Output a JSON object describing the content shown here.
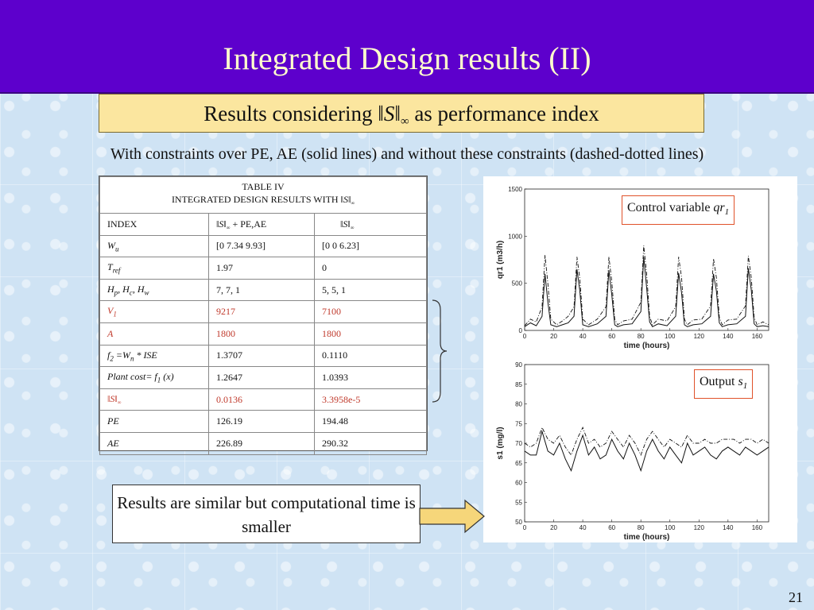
{
  "slide": {
    "title": "Integrated Design results (II)",
    "subtitle": {
      "before": "Results considering ",
      "norm_symbol": "S",
      "norm_sub": "∞",
      "after": " as performance index"
    },
    "caption": "With constraints over PE, AE (solid lines) and without these constraints (dashed-dotted lines)",
    "page_number": "21",
    "note": "Results are similar but computational time is smaller"
  },
  "table": {
    "caption_line1": "TABLE IV",
    "caption_line2": "INTEGRATED DESIGN RESULTS WITH ",
    "norm_symbol": "S",
    "norm_sub": "∞",
    "header": {
      "index": "INDEX",
      "col2_suffix": " + PE,AE"
    },
    "rows": [
      {
        "label": "W",
        "label_sub": "u",
        "a": "[0 7.34 9.93]",
        "b": "[0 0 6.23]",
        "red": false
      },
      {
        "label": "T",
        "label_sub": "ref",
        "a": "1.97",
        "b": "0",
        "red": false
      },
      {
        "label": "H",
        "label_sub": "p",
        "label_rest": ", H",
        "label_sub2": "c",
        "label_rest2": ", H",
        "label_sub3": "w",
        "a": "7, 7, 1",
        "b": "5, 5, 1",
        "red": false
      },
      {
        "label": "V",
        "label_sub": "1",
        "a": "9217",
        "b": "7100",
        "red": true
      },
      {
        "label": "A",
        "a": "1800",
        "b": "1800",
        "red": true
      },
      {
        "label": "f",
        "label_sub": "2",
        "label_rest": " =W",
        "label_sub2": "n",
        "label_rest2": " * ISE",
        "a": "1.3707",
        "b": "0.1110",
        "red": false
      },
      {
        "label": "Plant cost= f",
        "label_sub": "1",
        "label_rest": " (x)",
        "a": "1.2647",
        "b": "1.0393",
        "red": false
      },
      {
        "label": "norm",
        "a": "0.0136",
        "b": "3.3958e-5",
        "red": true
      },
      {
        "label": "PE",
        "a": "126.19",
        "b": "194.48",
        "red": false
      },
      {
        "label": "AE",
        "a": "226.89",
        "b": "290.32",
        "red": false
      }
    ]
  },
  "chart_data": [
    {
      "type": "line",
      "title": "",
      "annotation": "Control variable qr1",
      "annotation_text": "Control variable ",
      "annotation_var": "qr",
      "annotation_sub": "1",
      "xlabel": "time (hours)",
      "ylabel": "qr1 (m3/h)",
      "xlim": [
        0,
        168
      ],
      "ylim": [
        0,
        1500
      ],
      "xticks": [
        "0",
        "20",
        "40",
        "60",
        "80",
        "100",
        "120",
        "140",
        "160"
      ],
      "yticks": [
        "0",
        "500",
        "1000",
        "1500"
      ],
      "series": [
        {
          "style": "solid",
          "x": [
            0,
            4,
            8,
            12,
            14,
            16,
            18,
            22,
            26,
            30,
            34,
            36,
            38,
            40,
            44,
            50,
            56,
            58,
            60,
            62,
            64,
            68,
            74,
            80,
            82,
            84,
            86,
            88,
            92,
            98,
            104,
            106,
            108,
            110,
            112,
            116,
            122,
            128,
            130,
            132,
            134,
            136,
            140,
            146,
            152,
            154,
            156,
            158,
            160,
            164,
            168
          ],
          "y": [
            40,
            80,
            50,
            150,
            600,
            300,
            60,
            40,
            60,
            80,
            150,
            650,
            420,
            60,
            40,
            70,
            150,
            640,
            380,
            60,
            40,
            60,
            70,
            200,
            780,
            450,
            90,
            40,
            70,
            50,
            150,
            610,
            400,
            60,
            40,
            60,
            70,
            150,
            600,
            420,
            80,
            40,
            60,
            70,
            150,
            660,
            430,
            70,
            40,
            50,
            40
          ]
        },
        {
          "style": "dashdot",
          "x": [
            0,
            4,
            8,
            12,
            14,
            16,
            18,
            22,
            26,
            30,
            34,
            36,
            38,
            40,
            44,
            50,
            56,
            58,
            60,
            62,
            64,
            68,
            74,
            80,
            82,
            84,
            86,
            88,
            92,
            98,
            104,
            106,
            108,
            110,
            112,
            116,
            122,
            128,
            130,
            132,
            134,
            136,
            140,
            146,
            152,
            154,
            156,
            158,
            160,
            164,
            168
          ],
          "y": [
            50,
            120,
            90,
            250,
            800,
            500,
            120,
            60,
            100,
            150,
            250,
            780,
            550,
            120,
            60,
            120,
            250,
            780,
            520,
            120,
            60,
            100,
            120,
            300,
            900,
            600,
            150,
            60,
            120,
            100,
            250,
            780,
            560,
            120,
            60,
            110,
            120,
            260,
            760,
            560,
            140,
            60,
            110,
            120,
            260,
            790,
            560,
            140,
            60,
            90,
            60
          ]
        }
      ]
    },
    {
      "type": "line",
      "title": "",
      "annotation": "Output s1",
      "annotation_text": "Output ",
      "annotation_var": "s",
      "annotation_sub": "1",
      "xlabel": "time (hours)",
      "ylabel": "s1 (mg/l)",
      "xlim": [
        0,
        168
      ],
      "ylim": [
        50,
        90
      ],
      "xticks": [
        "0",
        "20",
        "40",
        "60",
        "80",
        "100",
        "120",
        "140",
        "160"
      ],
      "yticks": [
        "50",
        "55",
        "60",
        "65",
        "70",
        "75",
        "80",
        "85",
        "90"
      ],
      "series": [
        {
          "style": "solid",
          "x": [
            0,
            4,
            8,
            12,
            16,
            20,
            24,
            28,
            32,
            36,
            40,
            44,
            48,
            52,
            56,
            60,
            64,
            68,
            72,
            76,
            80,
            84,
            88,
            92,
            96,
            100,
            104,
            108,
            112,
            116,
            120,
            124,
            128,
            132,
            136,
            140,
            144,
            148,
            152,
            156,
            160,
            164,
            168
          ],
          "y": [
            68,
            67,
            67,
            73,
            68,
            67,
            70,
            66,
            63,
            68,
            72,
            67,
            69,
            66,
            67,
            71,
            68,
            66,
            70,
            67,
            63,
            68,
            71,
            68,
            66,
            69,
            67,
            65,
            70,
            67,
            68,
            69,
            67,
            66,
            68,
            69,
            68,
            67,
            69,
            68,
            67,
            68,
            69
          ]
        },
        {
          "style": "dashdot",
          "x": [
            0,
            4,
            8,
            12,
            16,
            20,
            24,
            28,
            32,
            36,
            40,
            44,
            48,
            52,
            56,
            60,
            64,
            68,
            72,
            76,
            80,
            84,
            88,
            92,
            96,
            100,
            104,
            108,
            112,
            116,
            120,
            124,
            128,
            132,
            136,
            140,
            144,
            148,
            152,
            156,
            160,
            164,
            168
          ],
          "y": [
            70,
            69,
            70,
            74,
            71,
            70,
            72,
            69,
            67,
            71,
            74,
            70,
            71,
            69,
            70,
            73,
            71,
            69,
            72,
            70,
            67,
            71,
            73,
            71,
            69,
            71,
            70,
            69,
            72,
            70,
            70,
            71,
            70,
            70,
            71,
            71,
            71,
            70,
            71,
            71,
            70,
            71,
            70
          ]
        }
      ]
    }
  ],
  "colors": {
    "title_bar": "#5d00cc",
    "title_text": "#ffffcc",
    "subtitle_box": "#fbe69f",
    "highlight_red": "#c0392b",
    "arrow_fill": "#f6d67a"
  }
}
